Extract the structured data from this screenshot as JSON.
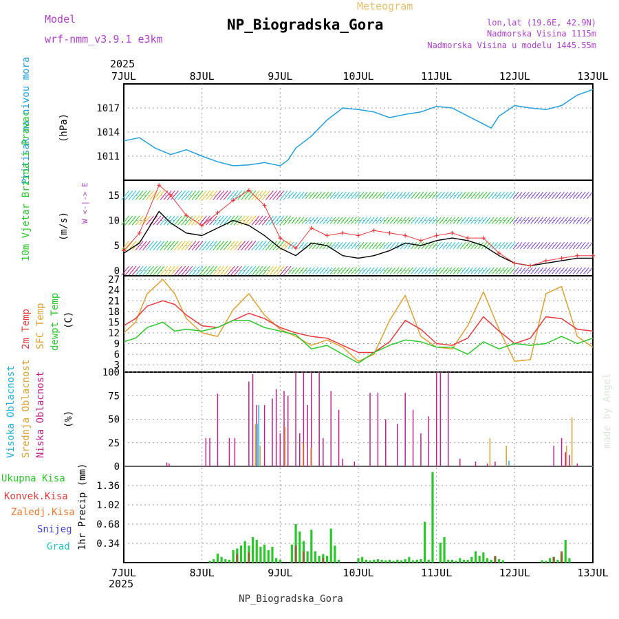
{
  "header": {
    "model_label": "Model",
    "model_name": "wrf-nmm_v3.9.1 e3km",
    "product": "Meteogram",
    "station": "NP_Biogradska_Gora",
    "coords": "lon,lat (19.6E, 42.9N)",
    "elevation": "Nadmorska Visina 1115m",
    "model_elevation": "Nadmorska Visina u modelu 1445.55m",
    "credit": "made by Angel",
    "footer_station": "NP_Biogradska_Gora"
  },
  "colors": {
    "pressure": "#1f9fdf",
    "wind_speed": "#000000",
    "wind_gust": "#e8393b",
    "temp_2m": "#e8393b",
    "temp_sfc": "#e0a030",
    "dewpoint": "#28c828",
    "cloud_high": "#20b0e0",
    "cloud_mid": "#e0a030",
    "cloud_low": "#c0208a",
    "precip_total": "#28c828",
    "precip_conv": "#e8393b",
    "precip_frz": "#f07830",
    "snow": "#4040e0",
    "hail": "#20c0c0",
    "wind_axis_label": "#b040d0"
  },
  "chart_data": [
    {
      "type": "line",
      "panel": "pressure",
      "ylabel_left": "Pritisak na nivou mora",
      "ylabel_unit": "(hPa)",
      "ylim": [
        1008,
        1020
      ],
      "yticks": [
        1011,
        1014,
        1017
      ],
      "x_year": "2025",
      "x_ticks": [
        "7JUL",
        "8JUL",
        "9JUL",
        "10JUL",
        "11JUL",
        "12JUL",
        "13JUL"
      ],
      "x_range_days": [
        0,
        6
      ],
      "series": [
        {
          "name": "MSLP",
          "x": [
            0,
            0.2,
            0.4,
            0.6,
            0.8,
            1.0,
            1.2,
            1.4,
            1.6,
            1.8,
            2.0,
            2.1,
            2.2,
            2.4,
            2.6,
            2.8,
            3.0,
            3.2,
            3.4,
            3.6,
            3.8,
            4.0,
            4.2,
            4.4,
            4.6,
            4.7,
            4.8,
            5.0,
            5.2,
            5.4,
            5.6,
            5.8,
            6.0
          ],
          "values": [
            1012.9,
            1013.3,
            1012.0,
            1011.2,
            1011.8,
            1011.0,
            1010.3,
            1009.8,
            1009.9,
            1010.2,
            1009.8,
            1010.5,
            1012.0,
            1013.5,
            1015.5,
            1017.0,
            1016.8,
            1016.5,
            1015.8,
            1016.2,
            1016.5,
            1017.2,
            1017.0,
            1016.0,
            1015.0,
            1014.5,
            1016.0,
            1017.3,
            1017.0,
            1016.8,
            1017.3,
            1018.6,
            1019.3
          ]
        }
      ]
    },
    {
      "type": "line",
      "panel": "wind",
      "ylabel_left": "10m Vjetar Brzina i Pravac",
      "ylabel_unit": "(m/s)",
      "compass": "W <-|-> E",
      "ylim": [
        -1,
        18
      ],
      "yticks": [
        0,
        5,
        10,
        15
      ],
      "series": [
        {
          "name": "Speed",
          "x": [
            0,
            0.2,
            0.45,
            0.6,
            0.8,
            1.0,
            1.2,
            1.4,
            1.6,
            1.8,
            2.0,
            2.2,
            2.4,
            2.6,
            2.8,
            3.0,
            3.2,
            3.4,
            3.6,
            3.8,
            4.0,
            4.2,
            4.4,
            4.6,
            4.8,
            5.0,
            5.2,
            5.4,
            5.6,
            5.8,
            6.0
          ],
          "values": [
            3.5,
            5.5,
            11.8,
            9.5,
            7.5,
            7.0,
            8.5,
            10.0,
            9.0,
            7.0,
            4.5,
            3.0,
            5.5,
            5.0,
            3.0,
            2.5,
            3.0,
            4.0,
            5.5,
            5.0,
            6.0,
            6.5,
            6.0,
            5.0,
            3.0,
            1.5,
            1.0,
            1.5,
            2.0,
            2.5,
            2.5
          ]
        },
        {
          "name": "Gust",
          "x": [
            0,
            0.2,
            0.45,
            0.6,
            0.8,
            1.0,
            1.2,
            1.4,
            1.6,
            1.8,
            2.0,
            2.2,
            2.4,
            2.6,
            2.8,
            3.0,
            3.2,
            3.4,
            3.6,
            3.8,
            4.0,
            4.2,
            4.4,
            4.6,
            4.8,
            5.0,
            5.2,
            5.4,
            5.6,
            5.8,
            6.0
          ],
          "values": [
            4.0,
            7.5,
            17.0,
            15.0,
            11.0,
            9.0,
            11.5,
            14.0,
            16.0,
            13.0,
            6.5,
            4.5,
            8.5,
            7.0,
            7.5,
            7.0,
            8.0,
            7.5,
            7.0,
            6.0,
            7.0,
            7.5,
            6.5,
            6.5,
            3.5,
            1.5,
            1.0,
            2.0,
            2.5,
            3.0,
            3.0
          ]
        }
      ],
      "barb_rows": [
        {
          "level": 15,
          "direction": "east-bound wind shafts"
        },
        {
          "level": 10,
          "direction": "east-bound wind shafts"
        },
        {
          "level": 5,
          "direction": "east-bound wind shafts"
        },
        {
          "level": 0,
          "direction": "east-bound wind shafts"
        }
      ]
    },
    {
      "type": "line",
      "panel": "temperature",
      "ylabel_left": [
        "2m Temp",
        "SFC Temp",
        "dewpt Temp"
      ],
      "ylabel_unit": "(C)",
      "ylim": [
        1,
        28
      ],
      "yticks": [
        3,
        6,
        9,
        12,
        15,
        18,
        21,
        24,
        27
      ],
      "series": [
        {
          "name": "2m Temp",
          "x": [
            0,
            0.15,
            0.3,
            0.5,
            0.65,
            0.8,
            1.0,
            1.2,
            1.4,
            1.6,
            1.8,
            2.0,
            2.2,
            2.4,
            2.6,
            2.8,
            3.0,
            3.2,
            3.4,
            3.6,
            3.8,
            4.0,
            4.2,
            4.4,
            4.6,
            4.8,
            5.0,
            5.2,
            5.4,
            5.6,
            5.8,
            6.0
          ],
          "values": [
            14,
            16,
            19.5,
            21,
            20,
            17,
            14,
            13.5,
            15.5,
            17.5,
            16,
            13.5,
            12,
            11,
            10.5,
            8.5,
            6.5,
            6.5,
            9.5,
            15.5,
            13,
            9,
            8.5,
            10.5,
            16.5,
            12.5,
            9,
            10.5,
            16.5,
            16,
            13,
            12.5
          ]
        },
        {
          "name": "SFC Temp",
          "x": [
            0,
            0.15,
            0.3,
            0.5,
            0.65,
            0.8,
            1.0,
            1.2,
            1.4,
            1.6,
            1.8,
            2.0,
            2.2,
            2.4,
            2.6,
            2.8,
            3.0,
            3.2,
            3.4,
            3.6,
            3.8,
            4.0,
            4.2,
            4.4,
            4.6,
            4.8,
            5.0,
            5.2,
            5.4,
            5.6,
            5.8,
            6.0
          ],
          "values": [
            12,
            15,
            23,
            27,
            23,
            16,
            12,
            11,
            18.5,
            23,
            17,
            13,
            11,
            8.5,
            10,
            8,
            4,
            6,
            15.5,
            22.5,
            11,
            8,
            7.5,
            14,
            23.5,
            13,
            4,
            4.5,
            23,
            25,
            11,
            8
          ]
        },
        {
          "name": "Dew Point",
          "x": [
            0,
            0.15,
            0.3,
            0.5,
            0.65,
            0.8,
            1.0,
            1.2,
            1.4,
            1.6,
            1.8,
            2.0,
            2.2,
            2.4,
            2.6,
            2.8,
            3.0,
            3.2,
            3.4,
            3.6,
            3.8,
            4.0,
            4.2,
            4.4,
            4.6,
            4.8,
            5.0,
            5.2,
            5.4,
            5.6,
            5.8,
            6.0
          ],
          "values": [
            9.5,
            10.5,
            13.5,
            15,
            12.5,
            13,
            12.5,
            13.5,
            15.5,
            15.5,
            13.5,
            12.5,
            11.5,
            7.5,
            8.5,
            6,
            3.5,
            6.5,
            8.5,
            10,
            9.5,
            8,
            8,
            6,
            9.5,
            7.5,
            9,
            8.5,
            9,
            11,
            9,
            10.5
          ]
        }
      ]
    },
    {
      "type": "bar",
      "panel": "clouds",
      "ylabel_left": [
        "Visoka Oblacnost",
        "Srednja Oblacnost",
        "Niska Oblacnost"
      ],
      "ylabel_unit": "(%)",
      "ylim": [
        0,
        100
      ],
      "yticks": [
        0,
        25,
        50,
        75,
        100
      ],
      "series": [
        {
          "name": "Niska Oblacnost",
          "x": [
            0.55,
            0.58,
            1.05,
            1.1,
            1.2,
            1.35,
            1.42,
            1.6,
            1.65,
            1.7,
            1.8,
            1.9,
            1.95,
            2.0,
            2.05,
            2.1,
            2.2,
            2.25,
            2.3,
            2.35,
            2.4,
            2.5,
            2.55,
            2.65,
            2.75,
            2.8,
            2.95,
            3.15,
            3.25,
            3.35,
            3.5,
            3.6,
            3.7,
            3.8,
            3.9,
            4.0,
            4.05,
            4.15,
            4.3,
            4.5,
            4.65,
            4.75,
            5.5,
            5.6,
            5.65,
            5.7,
            5.8
          ],
          "values": [
            4,
            3,
            30,
            30,
            77,
            30,
            30,
            90,
            98,
            65,
            65,
            72,
            82,
            35,
            80,
            75,
            100,
            35,
            100,
            65,
            100,
            100,
            30,
            80,
            60,
            8,
            5,
            78,
            78,
            50,
            45,
            78,
            60,
            35,
            53,
            100,
            100,
            100,
            8,
            5,
            3,
            5,
            22,
            30,
            15,
            12,
            3
          ]
        },
        {
          "name": "Srednja Oblacnost",
          "x": [
            1.67,
            1.73,
            2.05,
            2.28,
            2.38,
            4.67,
            4.88,
            5.65,
            5.72
          ],
          "values": [
            45,
            22,
            42,
            25,
            20,
            30,
            22,
            22,
            52
          ]
        },
        {
          "name": "Visoka Oblacnost",
          "x": [
            1.68,
            1.7,
            4.9
          ],
          "values": [
            45,
            65,
            6
          ]
        }
      ]
    },
    {
      "type": "bar",
      "panel": "precipitation",
      "ylabel_left": [
        "Ukupna Kisa",
        "Konvek.Kisa",
        "Zaledj.Kisa",
        "Snijeg",
        "Grad"
      ],
      "ylabel_unit": "1hr Precip (mm)",
      "ylim": [
        0,
        1.7
      ],
      "yticks": [
        0.34,
        0.68,
        1.02,
        1.36
      ],
      "series": [
        {
          "name": "Ukupna Kisa",
          "x": [
            1.1,
            1.15,
            1.2,
            1.25,
            1.3,
            1.35,
            1.4,
            1.45,
            1.5,
            1.55,
            1.6,
            1.65,
            1.7,
            1.75,
            1.8,
            1.85,
            1.9,
            1.95,
            2.0,
            2.15,
            2.2,
            2.25,
            2.3,
            2.35,
            2.4,
            2.45,
            2.5,
            2.55,
            2.6,
            2.65,
            2.7,
            2.75,
            3.0,
            3.05,
            3.1,
            3.15,
            3.2,
            3.25,
            3.3,
            3.35,
            3.4,
            3.45,
            3.5,
            3.55,
            3.6,
            3.65,
            3.7,
            3.75,
            3.8,
            3.85,
            3.9,
            3.95,
            4.05,
            4.1,
            4.15,
            4.2,
            4.25,
            4.3,
            4.35,
            4.4,
            4.45,
            4.5,
            4.55,
            4.6,
            4.65,
            4.7,
            4.75,
            4.8,
            4.85,
            5.35,
            5.4,
            5.45,
            5.5,
            5.55,
            5.6,
            5.65,
            5.7
          ],
          "values": [
            0.03,
            0.06,
            0.16,
            0.1,
            0.06,
            0.05,
            0.22,
            0.25,
            0.3,
            0.38,
            0.3,
            0.45,
            0.4,
            0.28,
            0.32,
            0.22,
            0.28,
            0.08,
            0.05,
            0.32,
            0.68,
            0.55,
            0.38,
            0.2,
            0.58,
            0.2,
            0.12,
            0.15,
            0.12,
            0.6,
            0.3,
            0.05,
            0.08,
            0.1,
            0.05,
            0.04,
            0.05,
            0.06,
            0.05,
            0.04,
            0.05,
            0.03,
            0.05,
            0.04,
            0.06,
            0.1,
            0.04,
            0.05,
            0.06,
            0.72,
            0.05,
            1.6,
            0.35,
            0.45,
            0.05,
            0.05,
            0.03,
            0.08,
            0.05,
            0.05,
            0.1,
            0.2,
            0.12,
            0.18,
            0.08,
            0.05,
            0.1,
            0.06,
            0.04,
            0.04,
            0.03,
            0.08,
            0.1,
            0.05,
            0.15,
            0.4,
            0.08
          ]
        },
        {
          "name": "Konvek.Kisa",
          "x": [
            1.45,
            1.6,
            2.2,
            2.3,
            2.55,
            4.75,
            5.5,
            5.6
          ],
          "values": [
            0.15,
            0.18,
            0.3,
            0.2,
            0.08,
            0.12,
            0.1,
            0.2
          ]
        }
      ]
    }
  ]
}
